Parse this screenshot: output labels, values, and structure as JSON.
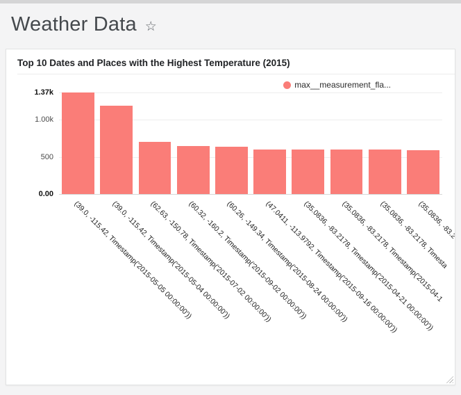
{
  "page": {
    "title": "Weather Data",
    "favorite_icon": "☆"
  },
  "chart_card": {
    "title": "Top 10 Dates and Places with the Highest Temperature (2015)",
    "legend": {
      "label": "max__measurement_fla...",
      "color": "#fa7d78"
    }
  },
  "chart_data": {
    "type": "bar",
    "title": "Top 10 Dates and Places with the Highest Temperature (2015)",
    "series": [
      {
        "name": "max__measurement_fla...",
        "values": [
          1370,
          1190,
          705,
          650,
          640,
          600,
          600,
          600,
          600,
          595
        ]
      }
    ],
    "categories": [
      "(39.0, -115.42, Timestamp('2015-05-05 00:00:00'))",
      "(39.0, -115.42, Timestamp('2015-05-04 00:00:00'))",
      "(62.63, -150.78, Timestamp('2015-07-02 00:00:00'))",
      "(60.32, -160.2, Timestamp('2015-09-02 00:00:00'))",
      "(60.26, -149.34, Timestamp('2015-08-24 00:00:00'))",
      "(47.0411, -113.9792, Timestamp('2015-09-16 00:00:00'))",
      "(35.0836, -83.2178, Timestamp('2015-04-21 00:00:00'))",
      "(35.0836, -83.2178, Timestamp('2015-04-1",
      "(35.0836, -83.2178, Timesta",
      "(35.0836, -83.2"
    ],
    "ylim": [
      0,
      1370
    ],
    "y_ticks": [
      {
        "label": "0.00",
        "value": 0,
        "bold": true
      },
      {
        "label": "500",
        "value": 500,
        "bold": false
      },
      {
        "label": "1.00k",
        "value": 1000,
        "bold": false
      },
      {
        "label": "1.37k",
        "value": 1370,
        "bold": true
      }
    ],
    "x_tick_rotation": 45,
    "grid": true,
    "legend_position": "top-right",
    "bar_color": "#fa7d78"
  }
}
